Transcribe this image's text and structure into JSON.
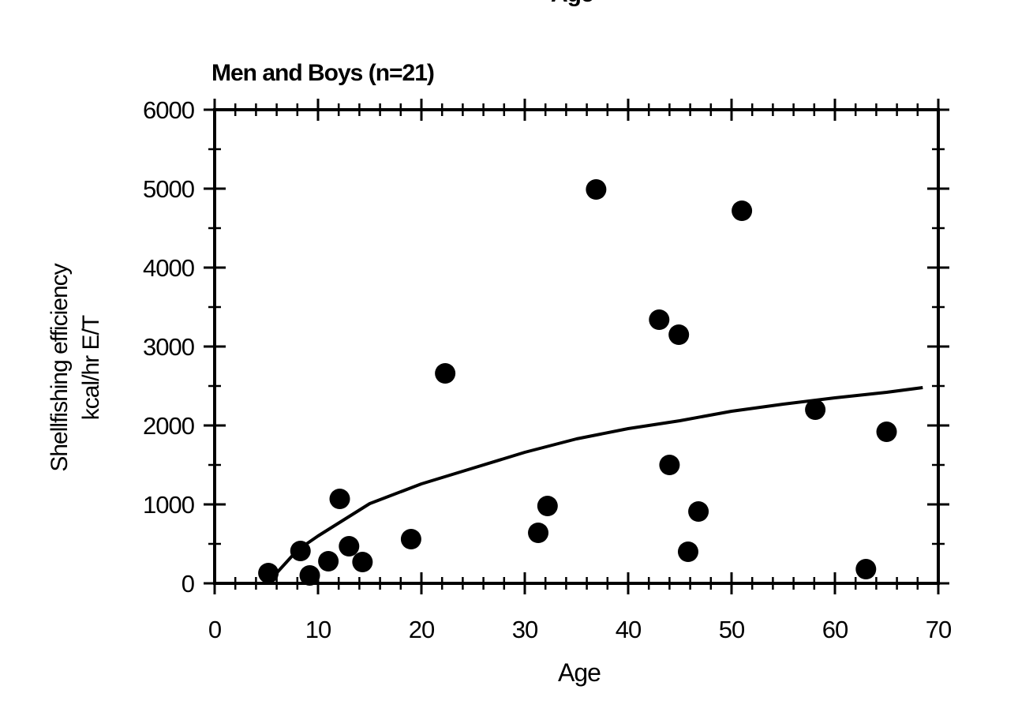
{
  "figure": {
    "cut_caption": "Age"
  },
  "chart_data": {
    "type": "scatter",
    "title": "Men and Boys (n=21)",
    "xlabel": "Age",
    "ylabel": [
      "Shellfishing efficiency",
      "kcal/hr E/T"
    ],
    "xlim": [
      0,
      70
    ],
    "ylim": [
      0,
      6000
    ],
    "x_ticks": [
      0,
      10,
      20,
      30,
      40,
      50,
      60,
      70
    ],
    "y_ticks": [
      0,
      1000,
      2000,
      3000,
      4000,
      5000,
      6000
    ],
    "grid": false,
    "legend": "none",
    "points": [
      {
        "x": 5.2,
        "y": 130
      },
      {
        "x": 8.3,
        "y": 410
      },
      {
        "x": 9.2,
        "y": 100
      },
      {
        "x": 11.0,
        "y": 280
      },
      {
        "x": 12.1,
        "y": 1070
      },
      {
        "x": 13.0,
        "y": 470
      },
      {
        "x": 14.3,
        "y": 270
      },
      {
        "x": 19.0,
        "y": 560
      },
      {
        "x": 22.3,
        "y": 2660
      },
      {
        "x": 31.3,
        "y": 640
      },
      {
        "x": 32.2,
        "y": 980
      },
      {
        "x": 36.9,
        "y": 4990
      },
      {
        "x": 43.0,
        "y": 3340
      },
      {
        "x": 44.0,
        "y": 1500
      },
      {
        "x": 44.9,
        "y": 3150
      },
      {
        "x": 45.8,
        "y": 400
      },
      {
        "x": 46.8,
        "y": 910
      },
      {
        "x": 51.0,
        "y": 4720
      },
      {
        "x": 58.1,
        "y": 2200
      },
      {
        "x": 63.0,
        "y": 180
      },
      {
        "x": 65.0,
        "y": 1920
      }
    ],
    "trend_line": [
      {
        "x": 5.5,
        "y": 60
      },
      {
        "x": 8,
        "y": 420
      },
      {
        "x": 10,
        "y": 600
      },
      {
        "x": 15,
        "y": 1010
      },
      {
        "x": 20,
        "y": 1260
      },
      {
        "x": 25,
        "y": 1460
      },
      {
        "x": 30,
        "y": 1660
      },
      {
        "x": 35,
        "y": 1830
      },
      {
        "x": 40,
        "y": 1960
      },
      {
        "x": 45,
        "y": 2060
      },
      {
        "x": 50,
        "y": 2180
      },
      {
        "x": 55,
        "y": 2270
      },
      {
        "x": 60,
        "y": 2350
      },
      {
        "x": 65,
        "y": 2420
      },
      {
        "x": 68.5,
        "y": 2480
      }
    ],
    "marker_color": "#000000",
    "line_color": "#000000"
  }
}
